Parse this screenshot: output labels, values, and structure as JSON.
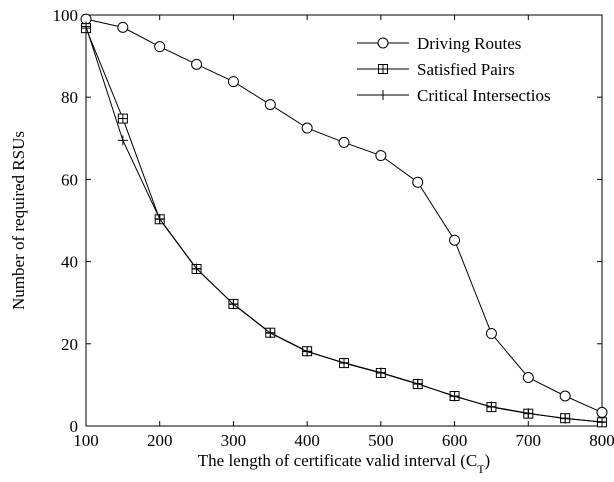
{
  "chart_data": {
    "type": "line",
    "xlabel": "The length of certificate valid interval (C",
    "xlabel_sub": "T",
    "xlabel_close": ")",
    "ylabel": "Number of required RSUs",
    "xlim": [
      100,
      800
    ],
    "ylim": [
      0,
      100
    ],
    "xticks": [
      100,
      200,
      300,
      400,
      500,
      600,
      700,
      800
    ],
    "yticks": [
      0,
      20,
      40,
      60,
      80,
      100
    ],
    "grid": false,
    "legend_position": "top-right",
    "x": [
      100,
      150,
      200,
      250,
      300,
      350,
      400,
      450,
      500,
      550,
      600,
      650,
      700,
      750,
      800
    ],
    "series": [
      {
        "name": "Driving Routes",
        "marker": "circle",
        "values": [
          99,
          97,
          92.3,
          88,
          83.8,
          78.2,
          72.5,
          69,
          65.8,
          59.3,
          45.2,
          22.5,
          11.8,
          7.3,
          3.3
        ]
      },
      {
        "name": "Satisfied Pairs",
        "marker": "square",
        "values": [
          96.8,
          74.8,
          50.3,
          38.2,
          29.7,
          22.7,
          18.2,
          15.3,
          12.9,
          10.2,
          7.3,
          4.6,
          3.0,
          1.9,
          0.9
        ]
      },
      {
        "name": "Critical Intersectios",
        "marker": "plus",
        "values": [
          97.2,
          69.5,
          50.4,
          38.3,
          29.6,
          22.6,
          18.1,
          15.4,
          13.0,
          10.3,
          7.2,
          4.7,
          3.1,
          1.8,
          1.0
        ]
      }
    ]
  }
}
